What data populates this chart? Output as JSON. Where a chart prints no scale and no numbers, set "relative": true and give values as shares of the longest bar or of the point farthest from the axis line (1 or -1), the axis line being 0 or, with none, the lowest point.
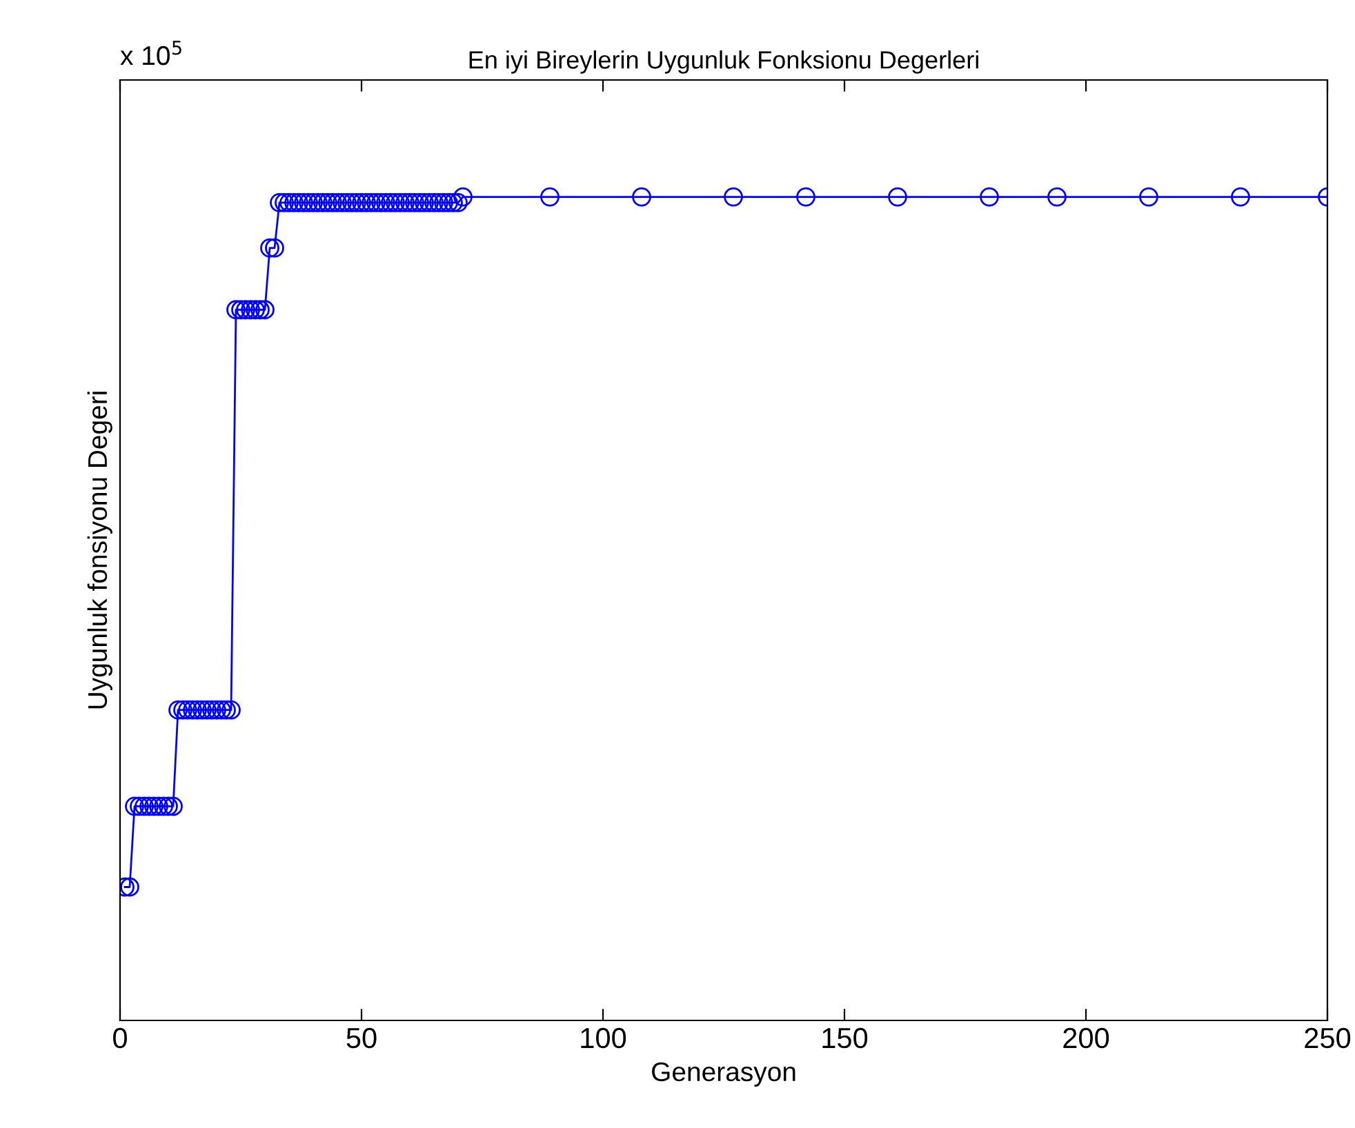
{
  "chart_data": {
    "type": "line",
    "title": "En iyi Bireylerin Uygunluk Fonksionu Degerleri",
    "xlabel": "Generasyon",
    "ylabel": "Uygunluk fonsiyonu Degeri",
    "relative": true,
    "annotations": [
      "x 10$^{5}$"
    ],
    "x": [
      1,
      2,
      3,
      4,
      5,
      6,
      7,
      8,
      9,
      10,
      11,
      12,
      13,
      14,
      15,
      16,
      17,
      18,
      19,
      20,
      21,
      22,
      23,
      24,
      25,
      26,
      27,
      28,
      29,
      30,
      31,
      32,
      33,
      34,
      35,
      36,
      37,
      38,
      39,
      40,
      41,
      42,
      43,
      44,
      45,
      46,
      47,
      48,
      49,
      50,
      51,
      52,
      53,
      54,
      55,
      56,
      57,
      58,
      59,
      60,
      61,
      62,
      63,
      64,
      65,
      66,
      67,
      68,
      69,
      70,
      71,
      89,
      108,
      127,
      142,
      161,
      180,
      194,
      213,
      232,
      250
    ],
    "series": [
      {
        "color": "#0000ff",
        "values": [
          0.162,
          0.162,
          0.26,
          0.26,
          0.26,
          0.26,
          0.26,
          0.26,
          0.26,
          0.26,
          0.26,
          0.377,
          0.377,
          0.377,
          0.377,
          0.377,
          0.377,
          0.377,
          0.377,
          0.377,
          0.377,
          0.377,
          0.377,
          0.863,
          0.863,
          0.863,
          0.863,
          0.863,
          0.863,
          0.863,
          0.938,
          0.938,
          0.993,
          0.993,
          0.993,
          0.993,
          0.993,
          0.993,
          0.993,
          0.993,
          0.993,
          0.993,
          0.993,
          0.993,
          0.993,
          0.993,
          0.993,
          0.993,
          0.993,
          0.993,
          0.993,
          0.993,
          0.993,
          0.993,
          0.993,
          0.993,
          0.993,
          0.993,
          0.993,
          0.993,
          0.993,
          0.993,
          0.993,
          0.993,
          0.993,
          0.993,
          0.993,
          0.993,
          0.993,
          0.993,
          1,
          1,
          1,
          1,
          1,
          1,
          1,
          1,
          1,
          1,
          1
        ]
      }
    ],
    "xlim": [
      0,
      250
    ],
    "xticks": [
      0,
      50,
      100,
      150,
      200,
      250
    ],
    "marker": "circle",
    "line_style": "solid",
    "grid": false
  }
}
